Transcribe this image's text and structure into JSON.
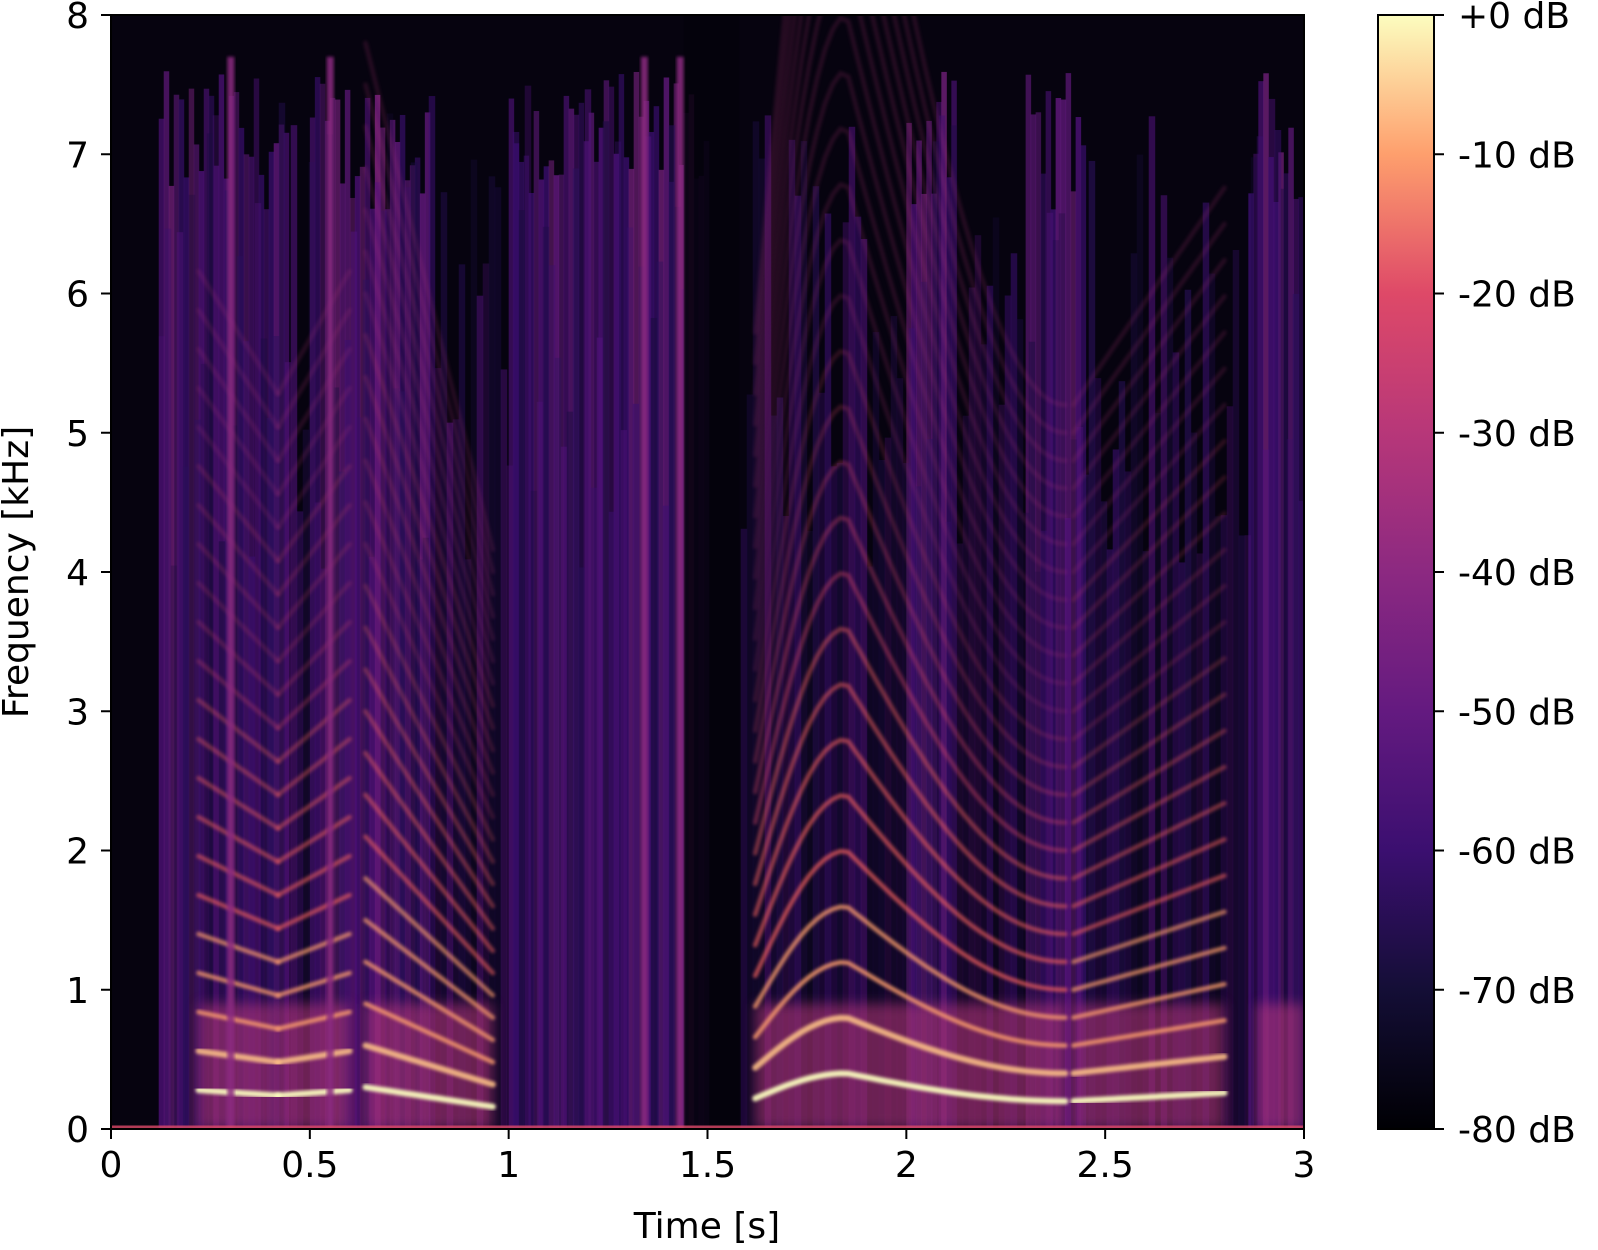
{
  "chart_data": {
    "type": "heatmap",
    "subtype": "spectrogram",
    "title": "",
    "xlabel": "Time [s]",
    "ylabel": "Frequency [kHz]",
    "xlim": [
      0,
      3
    ],
    "ylim": [
      0,
      8
    ],
    "x_ticks": [
      {
        "value": 0,
        "label": "0"
      },
      {
        "value": 0.5,
        "label": "0.5"
      },
      {
        "value": 1,
        "label": "1"
      },
      {
        "value": 1.5,
        "label": "1.5"
      },
      {
        "value": 2,
        "label": "2"
      },
      {
        "value": 2.5,
        "label": "2.5"
      },
      {
        "value": 3,
        "label": "3"
      }
    ],
    "y_ticks": [
      {
        "value": 0,
        "label": "0"
      },
      {
        "value": 1,
        "label": "1"
      },
      {
        "value": 2,
        "label": "2"
      },
      {
        "value": 3,
        "label": "3"
      },
      {
        "value": 4,
        "label": "4"
      },
      {
        "value": 5,
        "label": "5"
      },
      {
        "value": 6,
        "label": "6"
      },
      {
        "value": 7,
        "label": "7"
      },
      {
        "value": 8,
        "label": "8"
      }
    ],
    "colorbar": {
      "colormap": "magma",
      "range": [
        -80,
        0
      ],
      "ticks": [
        {
          "value": 0,
          "label": "+0 dB"
        },
        {
          "value": -10,
          "label": "-10 dB"
        },
        {
          "value": -20,
          "label": "-20 dB"
        },
        {
          "value": -30,
          "label": "-30 dB"
        },
        {
          "value": -40,
          "label": "-40 dB"
        },
        {
          "value": -50,
          "label": "-50 dB"
        },
        {
          "value": -60,
          "label": "-60 dB"
        },
        {
          "value": -70,
          "label": "-70 dB"
        },
        {
          "value": -80,
          "label": "-80 dB"
        }
      ]
    },
    "segments": [
      {
        "t_start": 0.22,
        "t_end": 0.42,
        "f0_khz_start": 0.28,
        "f0_khz_end": 0.24
      },
      {
        "t_start": 0.42,
        "t_end": 0.6,
        "f0_khz_start": 0.24,
        "f0_khz_end": 0.28
      },
      {
        "t_start": 0.64,
        "t_end": 0.96,
        "f0_khz_start": 0.3,
        "f0_khz_end": 0.16
      },
      {
        "t_start": 1.62,
        "t_end": 2.4,
        "f0_khz_start": 0.22,
        "f0_khz_end": 0.2,
        "f0_khz_peak": 0.4,
        "t_peak": 1.85
      },
      {
        "t_start": 2.42,
        "t_end": 2.8,
        "f0_khz_start": 0.2,
        "f0_khz_end": 0.26
      },
      {
        "t_start": 2.88,
        "t_end": 3.0,
        "f0_khz_start": 0.4,
        "f0_khz_end": 0.4
      }
    ],
    "transients": [
      {
        "t": 0.3
      },
      {
        "t": 0.55
      },
      {
        "t": 1.34
      },
      {
        "t": 1.43
      }
    ],
    "noise_bands": [
      {
        "t_start": 0.12,
        "t_end": 0.44
      },
      {
        "t_start": 0.5,
        "t_end": 0.8
      },
      {
        "t_start": 1.0,
        "t_end": 1.5
      },
      {
        "t_start": 2.0,
        "t_end": 2.12
      },
      {
        "t_start": 2.3,
        "t_end": 2.44
      },
      {
        "t_start": 2.86,
        "t_end": 3.0
      }
    ],
    "silence": [
      {
        "t_start": 1.44,
        "t_end": 1.58
      }
    ]
  }
}
